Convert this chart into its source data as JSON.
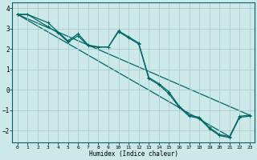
{
  "title": "",
  "xlabel": "Humidex (Indice chaleur)",
  "ylabel": "",
  "bg_color": "#cce8e8",
  "grid_color": "#aacccc",
  "line_color": "#006666",
  "xlim": [
    -0.5,
    23.5
  ],
  "ylim": [
    -2.6,
    4.3
  ],
  "yticks": [
    -2,
    -1,
    0,
    1,
    2,
    3,
    4
  ],
  "xticks": [
    0,
    1,
    2,
    3,
    4,
    5,
    6,
    7,
    8,
    9,
    10,
    11,
    12,
    13,
    14,
    15,
    16,
    17,
    18,
    19,
    20,
    21,
    22,
    23
  ],
  "series1_x": [
    0,
    1,
    3,
    5,
    6,
    7,
    8,
    9,
    10,
    11,
    12,
    13,
    14,
    15,
    16,
    17,
    18,
    19,
    20,
    21,
    22,
    23
  ],
  "series1_y": [
    3.7,
    3.7,
    3.3,
    2.4,
    2.75,
    2.2,
    2.1,
    2.1,
    2.9,
    2.6,
    2.3,
    0.6,
    0.3,
    -0.1,
    -0.8,
    -1.25,
    -1.35,
    -1.85,
    -2.2,
    -2.3,
    -1.3,
    -1.25
  ],
  "series2_x": [
    0,
    1,
    3,
    4,
    5,
    6,
    7,
    8,
    9,
    10,
    11,
    12,
    13,
    14,
    15,
    16,
    17,
    18,
    19,
    20,
    21,
    22,
    23
  ],
  "series2_y": [
    3.7,
    3.7,
    3.1,
    2.8,
    2.35,
    2.65,
    2.15,
    2.1,
    2.1,
    2.85,
    2.55,
    2.25,
    0.55,
    0.25,
    -0.2,
    -0.85,
    -1.3,
    -1.4,
    -1.9,
    -2.25,
    -2.35,
    -1.35,
    -1.3
  ],
  "line1_x": [
    0,
    21
  ],
  "line1_y": [
    3.7,
    -2.3
  ],
  "line2_x": [
    0,
    23
  ],
  "line2_y": [
    3.7,
    -1.25
  ]
}
